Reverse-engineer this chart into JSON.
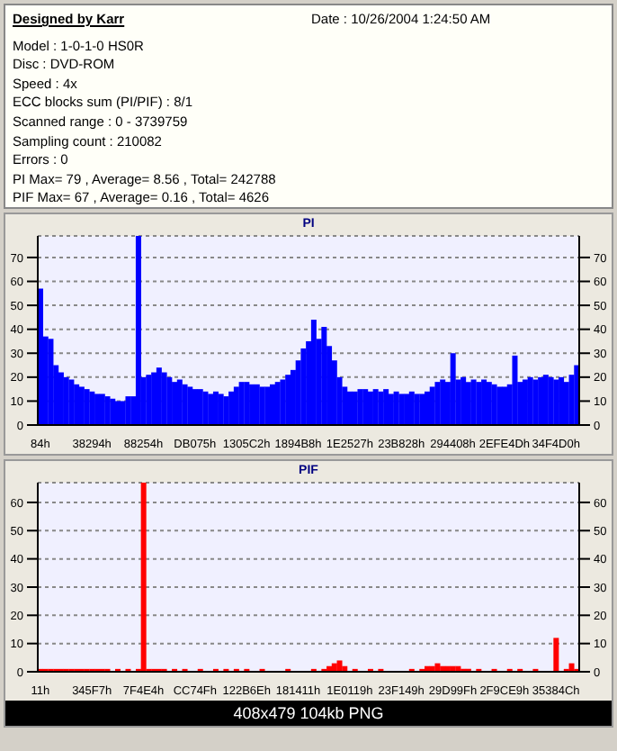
{
  "chart_data": [
    {
      "type": "other",
      "title": "Designed by Karr",
      "annotations": [
        "Date : 10/26/2004 1:24:50 AM",
        "Model : 1-0-1-0 HS0R",
        "Disc : DVD-ROM",
        "Speed : 4x",
        "ECC blocks sum (PI/PIF) : 8/1",
        "Scanned range : 0 - 3739759",
        "Sampling count : 210082",
        "Errors : 0",
        "PI Max= 79 , Average= 8.56 , Total= 242788",
        "PIF Max= 67 , Average= 0.16 , Total= 4626"
      ]
    },
    {
      "type": "bar",
      "title": "PI",
      "categories": [
        "84h",
        null,
        null,
        null,
        null,
        null,
        null,
        null,
        null,
        null,
        "38294h",
        null,
        null,
        null,
        null,
        null,
        null,
        null,
        null,
        null,
        "88254h",
        null,
        null,
        null,
        null,
        null,
        null,
        null,
        null,
        null,
        "DB075h",
        null,
        null,
        null,
        null,
        null,
        null,
        null,
        null,
        null,
        "1305C2h",
        null,
        null,
        null,
        null,
        null,
        null,
        null,
        null,
        null,
        "1894B8h",
        null,
        null,
        null,
        null,
        null,
        null,
        null,
        null,
        null,
        "1E2527h",
        null,
        null,
        null,
        null,
        null,
        null,
        null,
        null,
        null,
        "23B828h",
        null,
        null,
        null,
        null,
        null,
        null,
        null,
        null,
        null,
        "294408h",
        null,
        null,
        null,
        null,
        null,
        null,
        null,
        null,
        null,
        "2EFE4Dh",
        null,
        null,
        null,
        null,
        null,
        null,
        null,
        null,
        null,
        "34F4D0h",
        null,
        null,
        null,
        null
      ],
      "series": [
        {
          "color": "#0000ff",
          "values": [
            57,
            37,
            36,
            25,
            22,
            20,
            19,
            17,
            16,
            15,
            14,
            13,
            13,
            12,
            11,
            10,
            10,
            12,
            12,
            79,
            20,
            21,
            22,
            24,
            22,
            20,
            18,
            19,
            17,
            16,
            15,
            15,
            14,
            13,
            14,
            13,
            12,
            14,
            16,
            18,
            18,
            17,
            17,
            16,
            16,
            17,
            18,
            19,
            21,
            23,
            27,
            32,
            35,
            44,
            36,
            41,
            33,
            27,
            20,
            16,
            14,
            14,
            15,
            15,
            14,
            15,
            14,
            15,
            13,
            14,
            13,
            13,
            14,
            13,
            13,
            14,
            16,
            18,
            19,
            18,
            30,
            19,
            20,
            18,
            19,
            18,
            19,
            18,
            17,
            16,
            16,
            17,
            29,
            18,
            19,
            20,
            19,
            20,
            21,
            20,
            19,
            20,
            18,
            21,
            25
          ]
        }
      ],
      "ylim": [
        0,
        79
      ],
      "yticks": [
        0,
        10,
        20,
        30,
        40,
        50,
        60,
        70
      ],
      "y2lim": [
        0,
        79
      ],
      "y2ticks": [
        0,
        10,
        20,
        30,
        40,
        50,
        60,
        70
      ],
      "grid": "y"
    },
    {
      "type": "bar",
      "title": "PIF",
      "categories": [
        "11h",
        null,
        null,
        null,
        null,
        null,
        null,
        null,
        null,
        null,
        "345F7h",
        null,
        null,
        null,
        null,
        null,
        null,
        null,
        null,
        null,
        "7F4E4h",
        null,
        null,
        null,
        null,
        null,
        null,
        null,
        null,
        null,
        "CC74Fh",
        null,
        null,
        null,
        null,
        null,
        null,
        null,
        null,
        null,
        "122B6Eh",
        null,
        null,
        null,
        null,
        null,
        null,
        null,
        null,
        null,
        "181411h",
        null,
        null,
        null,
        null,
        null,
        null,
        null,
        null,
        null,
        "1E0119h",
        null,
        null,
        null,
        null,
        null,
        null,
        null,
        null,
        null,
        "23F149h",
        null,
        null,
        null,
        null,
        null,
        null,
        null,
        null,
        null,
        "29D99Fh",
        null,
        null,
        null,
        null,
        null,
        null,
        null,
        null,
        null,
        "2F9CE9h",
        null,
        null,
        null,
        null,
        null,
        null,
        null,
        null,
        null,
        "35384Ch",
        null,
        null,
        null,
        null
      ],
      "series": [
        {
          "color": "#ff0000",
          "values": [
            1,
            1,
            1,
            1,
            1,
            1,
            1,
            1,
            1,
            1,
            1,
            1,
            1,
            1,
            0,
            1,
            0,
            1,
            0,
            1,
            67,
            1,
            1,
            1,
            1,
            0,
            1,
            0,
            1,
            0,
            0,
            1,
            0,
            0,
            1,
            0,
            1,
            0,
            1,
            0,
            1,
            0,
            0,
            1,
            0,
            0,
            0,
            0,
            1,
            0,
            0,
            0,
            0,
            1,
            0,
            1,
            2,
            3,
            4,
            2,
            0,
            1,
            0,
            0,
            1,
            0,
            1,
            0,
            0,
            0,
            0,
            0,
            1,
            0,
            1,
            2,
            2,
            3,
            2,
            2,
            2,
            2,
            1,
            1,
            0,
            1,
            0,
            0,
            1,
            0,
            0,
            1,
            0,
            1,
            0,
            0,
            1,
            0,
            0,
            0,
            12,
            0,
            1,
            3,
            1
          ]
        }
      ],
      "ylim": [
        0,
        67
      ],
      "yticks": [
        0,
        10,
        20,
        30,
        40,
        50,
        60
      ],
      "y2lim": [
        0,
        67
      ],
      "y2ticks": [
        0,
        10,
        20,
        30,
        40,
        50,
        60
      ],
      "grid": "y",
      "annotations": [
        "408x479 104kb PNG"
      ]
    }
  ]
}
